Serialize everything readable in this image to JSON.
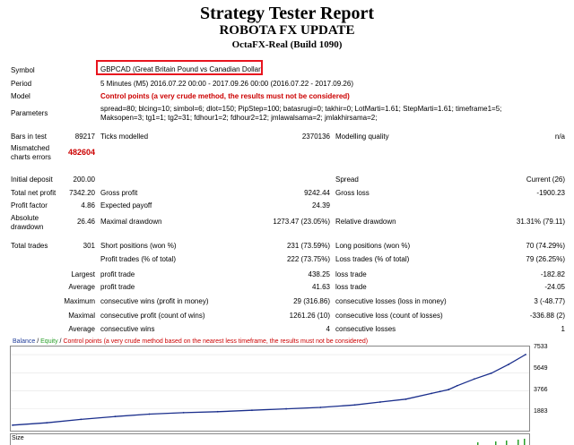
{
  "header": {
    "title": "Strategy Tester Report",
    "subtitle": "ROBOTA FX UPDATE",
    "server": "OctaFX-Real (Build 1090)"
  },
  "info": {
    "symbol_label": "Symbol",
    "symbol_value": "GBPCAD (Great Britain Pound vs Canadian Dollar)",
    "period_label": "Period",
    "period_value": "5 Minutes (M5) 2016.07.22 00:00 - 2017.09.26 00:00 (2016.07.22 - 2017.09.26)",
    "model_label": "Model",
    "model_value": "Control points (a very crude method, the results must not be considered)",
    "parameters_label": "Parameters",
    "parameters_line1": "spread=80; blcing=10; simbol=6; dlot=150; PipStep=100; batasrugi=0; takhir=0; LotMarti=1.61; StepMarti=1.61; timeframe1=5;",
    "parameters_line2": "Maksopen=3; tg1=1; tg2=31; fdhour1=2; fdhour2=12; jmlawalsama=2; jmlakhirsama=2;"
  },
  "bars": {
    "bars_label": "Bars in test",
    "bars_value": "89217",
    "ticks_label": "Ticks modelled",
    "ticks_value": "2370136",
    "quality_label": "Modelling quality",
    "quality_value": "n/a",
    "mismatch_label_1": "Mismatched",
    "mismatch_label_2": "charts errors",
    "mismatch_value": "482604"
  },
  "stats": {
    "initial_deposit_label": "Initial deposit",
    "initial_deposit_value": "200.00",
    "spread_label": "Spread",
    "spread_value": "Current (26)",
    "net_profit_label": "Total net profit",
    "net_profit_value": "7342.20",
    "gross_profit_label": "Gross profit",
    "gross_profit_value": "9242.44",
    "gross_loss_label": "Gross loss",
    "gross_loss_value": "-1900.23",
    "profit_factor_label": "Profit factor",
    "profit_factor_value": "4.86",
    "expected_payoff_label": "Expected payoff",
    "expected_payoff_value": "24.39",
    "abs_dd_label_1": "Absolute",
    "abs_dd_label_2": "drawdown",
    "abs_dd_value": "26.46",
    "max_dd_label": "Maximal drawdown",
    "max_dd_value": "1273.47 (23.05%)",
    "rel_dd_label": "Relative drawdown",
    "rel_dd_value": "31.31% (79.11)",
    "total_trades_label": "Total trades",
    "total_trades_value": "301",
    "short_label": "Short positions (won %)",
    "short_value": "231 (73.59%)",
    "long_label": "Long positions (won %)",
    "long_value": "70 (74.29%)",
    "profit_trades_label": "Profit trades (% of total)",
    "profit_trades_value": "222 (73.75%)",
    "loss_trades_label": "Loss trades (% of total)",
    "loss_trades_value": "79 (26.25%)",
    "largest_label": "Largest",
    "largest_profit_label": "profit trade",
    "largest_profit_value": "438.25",
    "largest_loss_label": "loss trade",
    "largest_loss_value": "-182.82",
    "average_label": "Average",
    "average_profit_label": "profit trade",
    "average_profit_value": "41.63",
    "average_loss_label": "loss trade",
    "average_loss_value": "-24.05",
    "maximum_label": "Maximum",
    "max_cons_wins_label": "consecutive wins (profit in money)",
    "max_cons_wins_value": "29 (316.86)",
    "max_cons_losses_label": "consecutive losses (loss in money)",
    "max_cons_losses_value": "3 (-48.77)",
    "maximal_label": "Maximal",
    "maximal_cons_profit_label": "consecutive profit (count of wins)",
    "maximal_cons_profit_value": "1261.26 (10)",
    "maximal_cons_loss_label": "consecutive loss (count of losses)",
    "maximal_cons_loss_value": "-336.88 (2)",
    "avg_label": "Average",
    "avg_cons_wins_label": "consecutive wins",
    "avg_cons_wins_value": "4",
    "avg_cons_losses_label": "consecutive losses",
    "avg_cons_losses_value": "1"
  },
  "chart": {
    "legend_balance": "Balance",
    "legend_sep1": " / ",
    "legend_equity": "Equity",
    "legend_sep2": " / ",
    "legend_rest": "Control points (a very crude method based on the nearest less timeframe, the results must not be considered)",
    "y_labels": [
      "7533",
      "5649",
      "3766",
      "1883"
    ],
    "size_label": "Size",
    "colors": {
      "balance": "#1f3c99",
      "equity": "#2aa02a",
      "points": "#cc0000",
      "line": "#1a2e8c"
    }
  },
  "chart_data": {
    "type": "line",
    "title": "",
    "series": [
      {
        "name": "Balance",
        "x": [
          0,
          20,
          40,
          60,
          80,
          100,
          120,
          140,
          160,
          180,
          200,
          215,
          230,
          245,
          250,
          255,
          260,
          270,
          280,
          290,
          300
        ],
        "values": [
          200,
          450,
          800,
          1100,
          1350,
          1500,
          1600,
          1750,
          1900,
          2050,
          2300,
          2600,
          2900,
          3500,
          3700,
          3900,
          4300,
          5000,
          5600,
          6500,
          7533
        ]
      }
    ],
    "yticks": [
      1883,
      3766,
      5649,
      7533
    ],
    "grid": false
  }
}
